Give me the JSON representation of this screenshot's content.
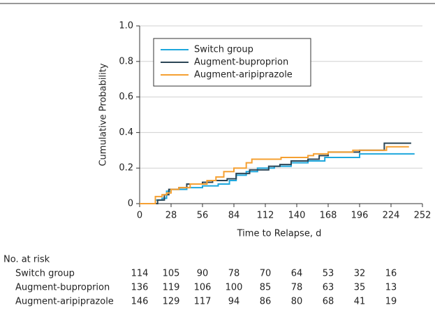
{
  "chart_data": {
    "type": "line",
    "xlabel": "Time to Relapse, d",
    "ylabel": "Cumulative Probability",
    "xlim": [
      0,
      252
    ],
    "xticks": [
      0,
      28,
      56,
      84,
      112,
      140,
      168,
      196,
      224,
      252
    ],
    "ylim": [
      0,
      1
    ],
    "yticks": [
      0,
      0.2,
      0.4,
      0.6,
      0.8,
      {
        "value": 1,
        "label": "1.0"
      }
    ],
    "grid": true,
    "legend": "upper left",
    "series": [
      {
        "name": "Switch group",
        "color": "#1ea7dd",
        "x": [
          0,
          14,
          14,
          20,
          20,
          24,
          24,
          28,
          28,
          42,
          42,
          56,
          56,
          70,
          70,
          80,
          80,
          86,
          86,
          95,
          95,
          105,
          105,
          120,
          120,
          135,
          135,
          150,
          150,
          165,
          165,
          196,
          196,
          245
        ],
        "values": [
          0,
          0,
          0.02,
          0.02,
          0.03,
          0.03,
          0.07,
          0.07,
          0.08,
          0.08,
          0.09,
          0.09,
          0.1,
          0.1,
          0.11,
          0.11,
          0.13,
          0.13,
          0.16,
          0.16,
          0.18,
          0.18,
          0.2,
          0.2,
          0.21,
          0.21,
          0.23,
          0.23,
          0.24,
          0.24,
          0.26,
          0.26,
          0.28,
          0.28
        ]
      },
      {
        "name": "Augment-buproprion",
        "color": "#2b4555",
        "x": [
          0,
          16,
          16,
          22,
          22,
          26,
          26,
          35,
          35,
          42,
          42,
          56,
          56,
          65,
          65,
          78,
          78,
          86,
          86,
          98,
          98,
          115,
          115,
          125,
          125,
          135,
          135,
          150,
          150,
          160,
          160,
          168,
          168,
          196,
          196,
          218,
          218,
          242
        ],
        "values": [
          0,
          0,
          0.02,
          0.02,
          0.05,
          0.05,
          0.08,
          0.08,
          0.09,
          0.09,
          0.11,
          0.11,
          0.12,
          0.12,
          0.13,
          0.13,
          0.14,
          0.14,
          0.17,
          0.17,
          0.19,
          0.19,
          0.21,
          0.21,
          0.22,
          0.22,
          0.24,
          0.24,
          0.25,
          0.25,
          0.27,
          0.27,
          0.29,
          0.29,
          0.3,
          0.3,
          0.34,
          0.34
        ]
      },
      {
        "name": "Augment-aripiprazole",
        "color": "#f5a032",
        "x": [
          0,
          14,
          14,
          20,
          20,
          24,
          24,
          28,
          28,
          35,
          35,
          45,
          45,
          60,
          60,
          68,
          68,
          75,
          75,
          84,
          84,
          95,
          95,
          100,
          100,
          126,
          126,
          150,
          150,
          155,
          155,
          168,
          168,
          190,
          190,
          220,
          220,
          240
        ],
        "values": [
          0,
          0,
          0.04,
          0.04,
          0.05,
          0.05,
          0.06,
          0.06,
          0.08,
          0.08,
          0.09,
          0.09,
          0.11,
          0.11,
          0.13,
          0.13,
          0.15,
          0.15,
          0.18,
          0.18,
          0.2,
          0.2,
          0.23,
          0.23,
          0.25,
          0.25,
          0.26,
          0.26,
          0.27,
          0.27,
          0.28,
          0.28,
          0.29,
          0.29,
          0.3,
          0.3,
          0.32,
          0.32
        ]
      }
    ],
    "risk_table": {
      "title": "No. at risk",
      "rows": [
        [
          114,
          105,
          90,
          78,
          70,
          64,
          53,
          32,
          16
        ],
        [
          136,
          119,
          106,
          100,
          85,
          78,
          63,
          35,
          13
        ],
        [
          146,
          129,
          117,
          94,
          86,
          80,
          68,
          41,
          19
        ]
      ]
    }
  }
}
